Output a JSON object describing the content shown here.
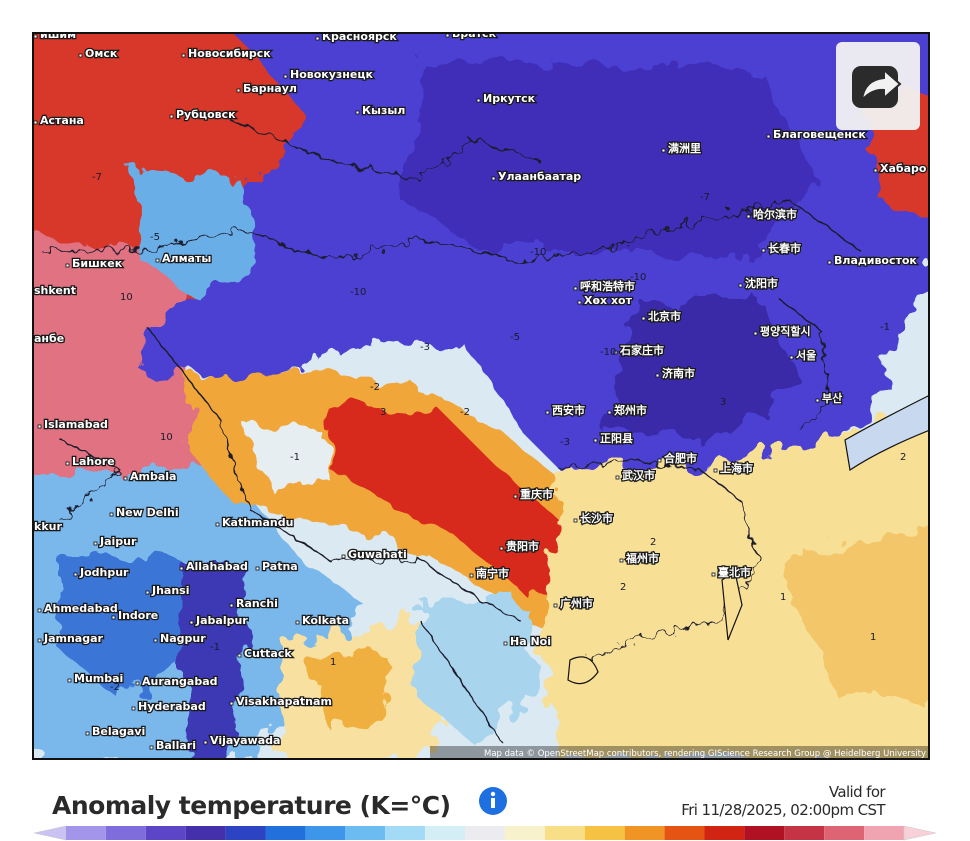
{
  "map": {
    "cities": [
      "ишим",
      "Омск",
      "Новосибирск",
      "Красноярск",
      "Братск",
      "Новокузнецк",
      "Барнаул",
      "Рубцовск",
      "Кызыл",
      "Иркутск",
      "Астана",
      "Благовещенск",
      "Хабаро",
      "Улаанбаатар",
      "满洲里",
      "哈尔滨市",
      "长春市",
      "Владивосток",
      "Бишкек",
      "Алматы",
      "shkent",
      "анбе",
      "呼和浩特市",
      "Хөх хот",
      "沈阳市",
      "北京市",
      "평양직할시",
      "서울",
      "石家庄市",
      "济南市",
      "부산",
      "西安市",
      "郑州市",
      "正阳县",
      "合肥市",
      "上海市",
      "武汉市",
      "Islamabad",
      "Lahore",
      "Ambala",
      "New Delhi",
      "Kathmandu",
      "Guwahati",
      "重庆市",
      "贵阳市",
      "长沙市",
      "Jaipur",
      "Jodhpur",
      "Allahabad",
      "Patna",
      "Jhansi",
      "Ahmedabad",
      "Indore",
      "Ranchi",
      "Jamnagar",
      "Nagpur",
      "Jabalpur",
      "Kolkata",
      "Cuttack",
      "Mumbai",
      "Aurangabad",
      "Hyderabad",
      "Visakhapatnam",
      "Belagavi",
      "Ballari",
      "Vijayawada",
      "Ha Noi",
      "臺北市",
      "南宁市",
      "广州市",
      "福州市",
      "kkur"
    ],
    "contour_labels": [
      "-7",
      "-5",
      "-10",
      "-10",
      "-10",
      "-7",
      "-10",
      "-5",
      "-3",
      "-2",
      "-1",
      "1",
      "2",
      "3",
      "-3",
      "-2",
      "1",
      "2",
      "-1",
      "-2",
      "10",
      "10",
      "3",
      "-1",
      "2",
      "1"
    ],
    "attribution": "Map data © OpenStreetMap contributors, rendering GIScience Research Group @ Heidelberg University"
  },
  "legend": {
    "title": "Anomaly temperature (K=°C)",
    "valid_for": "Valid for",
    "valid_time": "Fri 11/28/2025, 02:00pm CST",
    "colors": [
      "#c9c2f2",
      "#a396ea",
      "#7f6ddc",
      "#5d45c8",
      "#4430aa",
      "#2c44c4",
      "#2270dc",
      "#3d96ea",
      "#6cbcf2",
      "#a3daf6",
      "#d4eef6",
      "#ececf0",
      "#f8f2cc",
      "#f8de86",
      "#f6c244",
      "#f09426",
      "#e65414",
      "#d22412",
      "#b01224",
      "#c43444",
      "#de6474",
      "#f0a4b2",
      "#f8d0d8"
    ]
  }
}
